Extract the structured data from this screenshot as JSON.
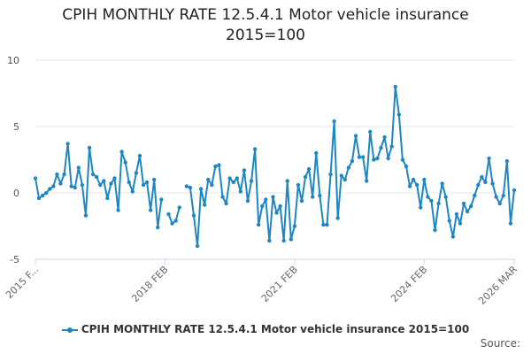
{
  "title_lines": [
    "CPIH MONTHLY RATE 12.5.4.1 Motor vehicle insurance",
    "2015=100"
  ],
  "legend_label": "CPIH MONTHLY RATE 12.5.4.1 Motor vehicle insurance 2015=100",
  "source_label": "Source:",
  "colors": {
    "series": "#1f86c0",
    "grid": "#e6e6e6",
    "axis": "#ccd6eb"
  },
  "chart_data": {
    "type": "line",
    "title": "CPIH MONTHLY RATE 12.5.4.1 Motor vehicle insurance 2015=100",
    "xlabel": "",
    "ylabel": "",
    "ylim": [
      -5,
      10
    ],
    "y_ticks": [
      -5,
      0,
      5,
      10
    ],
    "grid": true,
    "legend_position": "bottom",
    "x_start": "2015-02",
    "x_tick_labels": [
      {
        "index": 0,
        "label": "2015 F..."
      },
      {
        "index": 36,
        "label": "2018 FEB"
      },
      {
        "index": 72,
        "label": "2021 FEB"
      },
      {
        "index": 108,
        "label": "2024 FEB"
      },
      {
        "index": 133,
        "label": "2026 MAR"
      }
    ],
    "series": [
      {
        "name": "CPIH MONTHLY RATE 12.5.4.1 Motor vehicle insurance 2015=100",
        "values": [
          1.1,
          -0.4,
          -0.2,
          0.0,
          0.3,
          0.5,
          1.4,
          0.7,
          1.4,
          3.7,
          0.5,
          0.4,
          1.9,
          0.6,
          -1.7,
          3.4,
          1.4,
          1.2,
          0.6,
          0.9,
          -0.4,
          0.7,
          1.1,
          -1.3,
          3.1,
          2.3,
          0.8,
          0.1,
          1.5,
          2.8,
          0.6,
          0.8,
          -1.3,
          1.0,
          -2.6,
          -0.5,
          null,
          -1.6,
          -2.3,
          -2.1,
          -1.1,
          null,
          0.5,
          0.4,
          -1.7,
          -4.0,
          0.3,
          -0.9,
          1.0,
          0.6,
          2.0,
          2.1,
          -0.3,
          -0.8,
          1.1,
          0.8,
          1.1,
          0.1,
          1.7,
          -0.6,
          0.9,
          3.3,
          -2.4,
          -1.0,
          -0.5,
          -3.6,
          -0.3,
          -1.5,
          -1.0,
          -3.6,
          0.9,
          -3.5,
          -2.5,
          0.6,
          -0.6,
          1.2,
          1.8,
          -0.3,
          3.0,
          -0.2,
          -2.4,
          -2.4,
          1.4,
          5.4,
          -1.9,
          1.3,
          1.0,
          1.9,
          2.4,
          4.3,
          2.7,
          2.7,
          0.9,
          4.6,
          2.5,
          2.6,
          3.4,
          4.2,
          2.6,
          3.5,
          8.0,
          5.9,
          2.5,
          2.0,
          0.5,
          1.0,
          0.6,
          -1.1,
          1.0,
          -0.3,
          -0.6,
          -2.8,
          -0.8,
          0.7,
          -0.3,
          -2.1,
          -3.3,
          -1.6,
          -2.3,
          -0.8,
          -1.4,
          -1.0,
          -0.2,
          0.6,
          1.2,
          0.8,
          2.6,
          0.7,
          -0.3,
          -0.8,
          -0.2,
          2.4,
          -2.3,
          0.2
        ]
      }
    ]
  }
}
